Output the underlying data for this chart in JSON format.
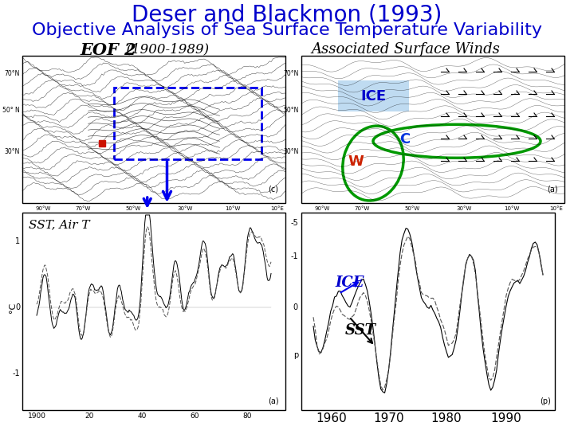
{
  "title_line1": "Deser and Blackmon (1993)",
  "title_line2": "Objective Analysis of Sea Surface Temperature Variability",
  "title_color": "#0000CC",
  "title_fontsize": 20,
  "subtitle_fontsize": 16,
  "bg_color": "#FFFFFF",
  "label_eof": "EOF 2",
  "label_eof_sub": "  (1900-1989)",
  "label_winds": "Associated Surface Winds",
  "label_sst_airt": "SST, Air T",
  "label_ice_map": "ICE",
  "label_ice_ts": "ICE",
  "label_sst_ts": "SST",
  "label_c": "C",
  "label_w": "W",
  "annotation_color_blue": "#0000DD",
  "annotation_color_green": "#00AA00",
  "annotation_color_red": "#CC2200",
  "map_bg": "#FFFFFF",
  "map_border": "#000000",
  "tick_labels_bottom": [
    "1960",
    "1970",
    "1980",
    "1990"
  ],
  "panel_label_c": "(c)",
  "panel_label_a_wind": "(a)",
  "panel_label_a_ts": "(a)",
  "panel_label_p": "(p)"
}
